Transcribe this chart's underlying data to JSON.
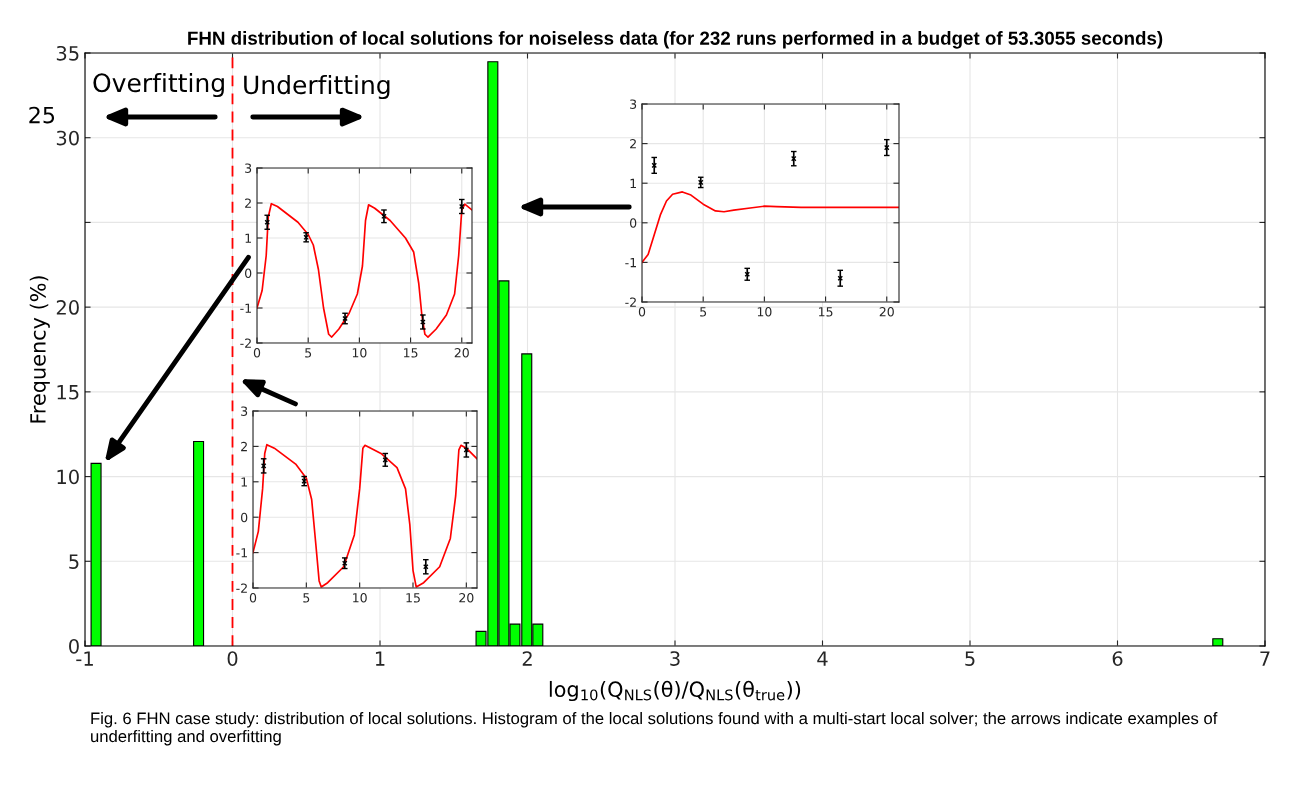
{
  "chart_data": [
    {
      "type": "bar",
      "title": "FHN distribution of local solutions for noiseless data (for 232 runs performed in a budget of 53.3055 seconds)",
      "xlabel": "log$_{10}$(Q$_{NLS}$(θ)/Q$_{NLS}$(θ$_{true}$))",
      "ylabel": "Frequency (%)",
      "x": [
        -0.925,
        -0.23,
        1.685,
        1.765,
        1.84,
        1.915,
        1.995,
        2.07,
        6.68
      ],
      "values": [
        10.78,
        12.07,
        0.86,
        34.48,
        21.55,
        1.29,
        17.24,
        1.29,
        0.43
      ],
      "color": "#00ff00",
      "xlim": [
        -1,
        7
      ],
      "xticks": [
        -1,
        0,
        1,
        2,
        3,
        4,
        5,
        6,
        7
      ],
      "ylim": [
        0,
        35
      ],
      "yticks": [
        0,
        5,
        10,
        15,
        20,
        {
          "value": 25,
          "label": null
        },
        30,
        35
      ],
      "grid": true,
      "ref_lines": [
        {
          "axis": "x",
          "value": 0,
          "color": "#ff0000",
          "line_style": "dashed"
        }
      ],
      "annotations": [
        "Overfitting",
        "Underfitting",
        "25",
        "Fig. 6 FHN case study: distribution of local solutions. Histogram of the local solutions found with a multi-start local solver; the arrows indicate examples of underfitting and overfitting"
      ]
    },
    {
      "type": "line",
      "xlim": [
        0,
        21
      ],
      "xticks": [
        0,
        5,
        10,
        15,
        20
      ],
      "ylim": [
        -2,
        3
      ],
      "yticks": [
        -2,
        -1,
        0,
        1,
        2,
        3
      ],
      "grid": true,
      "series": [
        {
          "type": "line",
          "color": "#ff0000",
          "x": [
            0,
            0.5,
            0.9,
            1.1,
            1.4,
            2,
            4,
            5,
            5.5,
            6,
            6.5,
            7,
            7.3,
            8,
            9,
            9.8,
            10.3,
            10.6,
            10.9,
            11.5,
            13,
            14.5,
            15.3,
            15.8,
            16.1,
            16.4,
            16.7,
            17.5,
            18.5,
            19.3,
            19.7,
            20,
            20.3,
            21
          ],
          "values": [
            -1,
            -0.5,
            0.5,
            1.6,
            1.98,
            1.9,
            1.45,
            1.1,
            0.8,
            0.1,
            -1.0,
            -1.75,
            -1.83,
            -1.6,
            -1.15,
            -0.6,
            0.2,
            1.5,
            1.95,
            1.85,
            1.5,
            1.0,
            0.6,
            -0.3,
            -1.2,
            -1.75,
            -1.83,
            -1.6,
            -1.2,
            -0.6,
            0.5,
            1.8,
            1.97,
            1.8
          ]
        },
        {
          "type": "scatter",
          "color": "#000000",
          "marker": "cross",
          "x": [
            1,
            4.8,
            8.6,
            12.4,
            16.2,
            20
          ],
          "values": [
            1.45,
            1.02,
            -1.3,
            1.62,
            -1.4,
            1.9
          ],
          "errors": [
            0.2,
            0.13,
            0.15,
            0.18,
            0.2,
            0.2
          ]
        }
      ]
    },
    {
      "type": "line",
      "xlim": [
        0,
        21
      ],
      "xticks": [
        0,
        5,
        10,
        15,
        20
      ],
      "ylim": [
        -2,
        3
      ],
      "yticks": [
        -2,
        -1,
        0,
        1,
        2,
        3
      ],
      "grid": true,
      "series": [
        {
          "type": "line",
          "color": "#ff0000",
          "x": [
            0,
            0.5,
            0.9,
            1.1,
            1.3,
            2,
            4,
            5,
            5.5,
            5.9,
            6.2,
            6.4,
            7,
            8.5,
            9.5,
            10,
            10.3,
            10.5,
            12,
            13.5,
            14.3,
            14.7,
            15,
            15.3,
            16,
            17.5,
            18.5,
            19,
            19.3,
            19.5,
            20,
            21
          ],
          "values": [
            -1,
            -0.4,
            0.8,
            1.8,
            2.05,
            1.95,
            1.5,
            1.1,
            0.5,
            -0.8,
            -1.8,
            -1.97,
            -1.85,
            -1.4,
            -0.5,
            0.8,
            1.95,
            2.03,
            1.8,
            1.4,
            0.8,
            -0.2,
            -1.5,
            -1.97,
            -1.85,
            -1.4,
            -0.6,
            0.6,
            1.9,
            2.03,
            1.95,
            1.65
          ]
        },
        {
          "type": "scatter",
          "color": "#000000",
          "marker": "cross",
          "x": [
            1,
            4.8,
            8.6,
            12.4,
            16.2,
            20
          ],
          "values": [
            1.45,
            1.02,
            -1.3,
            1.62,
            -1.4,
            1.9
          ],
          "errors": [
            0.2,
            0.13,
            0.15,
            0.18,
            0.2,
            0.2
          ]
        }
      ]
    },
    {
      "type": "line",
      "xlim": [
        0,
        21
      ],
      "xticks": [
        0,
        5,
        10,
        15,
        20
      ],
      "ylim": [
        -2,
        3
      ],
      "yticks": [
        -2,
        -1,
        0,
        1,
        2,
        3
      ],
      "grid": true,
      "series": [
        {
          "type": "line",
          "color": "#ff0000",
          "x": [
            0,
            0.5,
            1,
            1.5,
            2,
            2.5,
            3.3,
            4,
            5,
            6,
            6.7,
            7.5,
            9,
            10,
            11,
            13,
            15,
            21
          ],
          "values": [
            -1,
            -0.8,
            -0.3,
            0.2,
            0.55,
            0.72,
            0.78,
            0.7,
            0.47,
            0.3,
            0.28,
            0.32,
            0.38,
            0.42,
            0.41,
            0.39,
            0.39,
            0.39
          ]
        },
        {
          "type": "scatter",
          "color": "#000000",
          "marker": "cross",
          "x": [
            1,
            4.8,
            8.6,
            12.4,
            16.2,
            20
          ],
          "values": [
            1.45,
            1.02,
            -1.3,
            1.62,
            -1.4,
            1.9
          ],
          "errors": [
            0.2,
            0.13,
            0.15,
            0.18,
            0.2,
            0.2
          ]
        }
      ]
    }
  ]
}
